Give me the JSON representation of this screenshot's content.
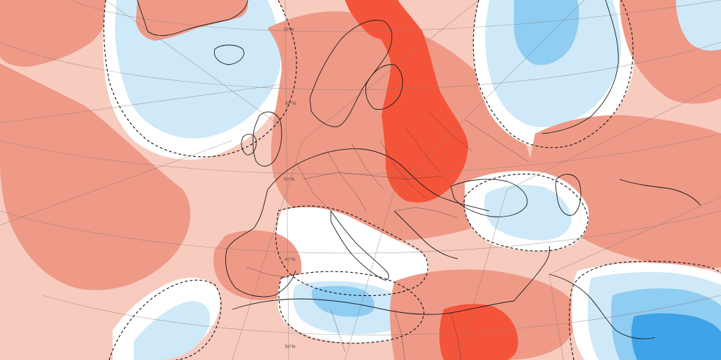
{
  "map": {
    "lat_labels": [
      "70°N",
      "60°N",
      "50°N",
      "40°N",
      "30°N"
    ],
    "legend_colors": {
      "strong_positive": "#f4553a",
      "positive": "#ee9a87",
      "weak_positive": "#f8cbbf",
      "neutral": "#ffffff",
      "weak_negative": "#cfe9f8",
      "negative": "#8fcdf3",
      "strong_negative": "#3ea3e6"
    }
  }
}
